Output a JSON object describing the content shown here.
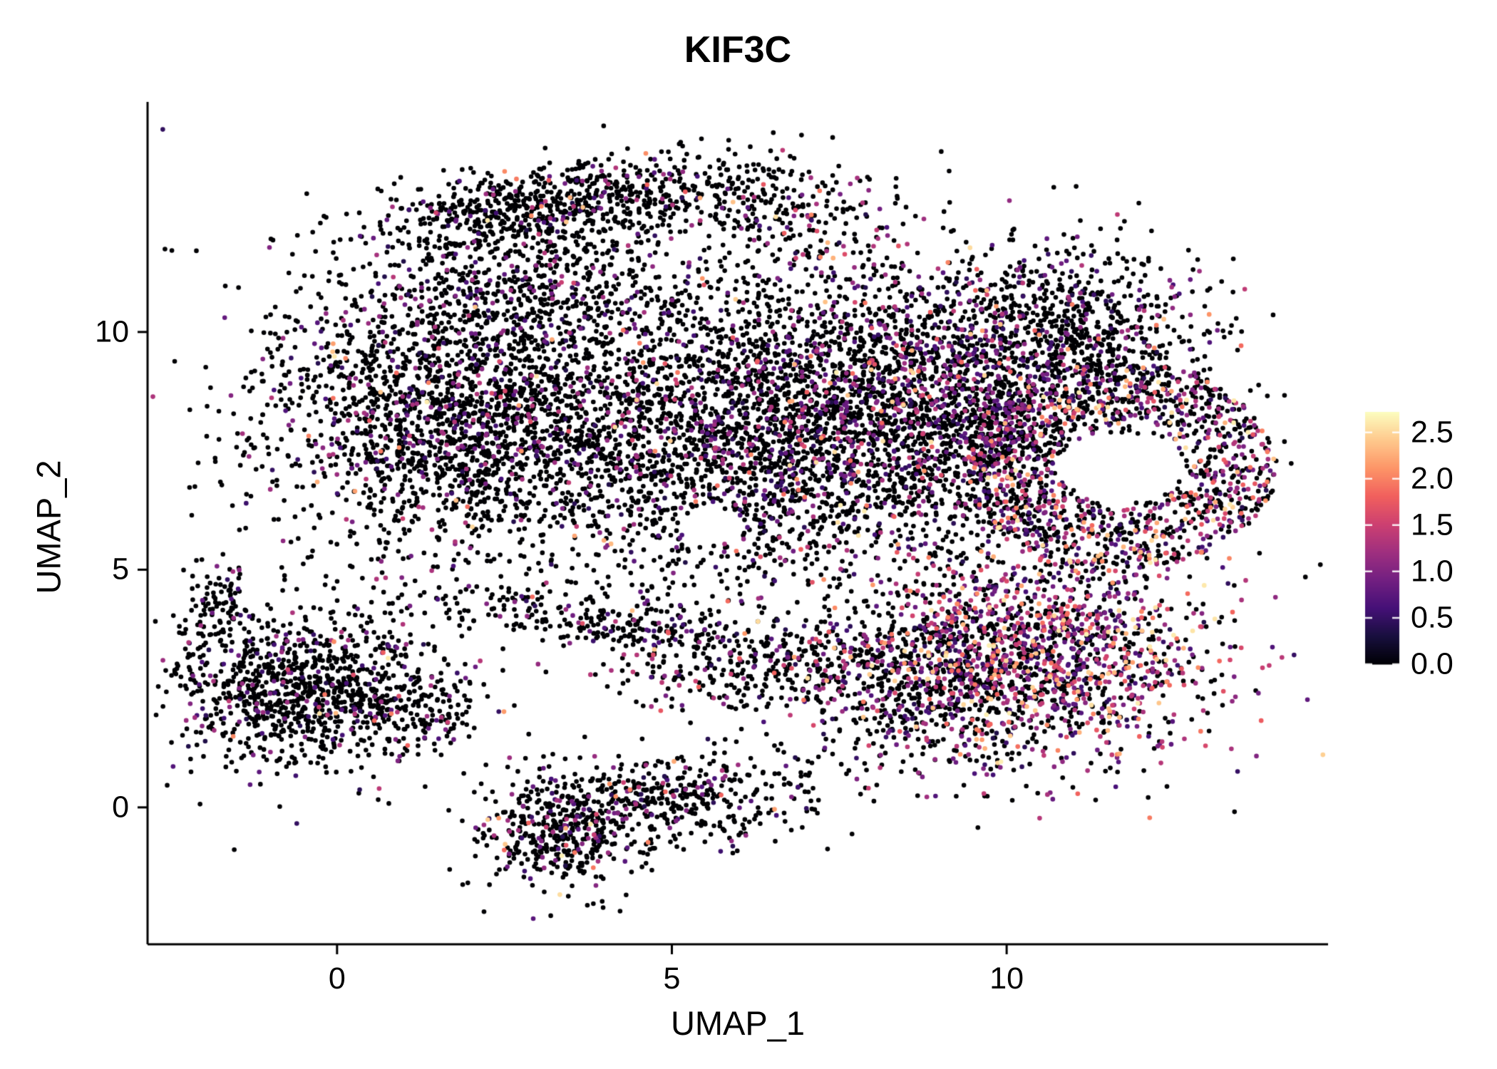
{
  "chart_data": {
    "type": "scatter",
    "title": "KIF3C",
    "xlabel": "UMAP_1",
    "ylabel": "UMAP_2",
    "xlim": [
      -2.83,
      14.8
    ],
    "ylim": [
      -2.88,
      14.84
    ],
    "x_axis": {
      "label": "UMAP_1",
      "ticks": [
        {
          "value": 0,
          "label": "0"
        },
        {
          "value": 5,
          "label": "5"
        },
        {
          "value": 10,
          "label": "10"
        }
      ]
    },
    "y_axis": {
      "label": "UMAP_2",
      "ticks": [
        {
          "value": 0,
          "label": "0"
        },
        {
          "value": 5,
          "label": "5"
        },
        {
          "value": 10,
          "label": "10"
        }
      ]
    },
    "grid": false,
    "legend_position": "right",
    "point_radius": 3.3,
    "seed": 42,
    "colorbar": {
      "vmin": 0.0,
      "vmax": 2.72,
      "colormap": "magma",
      "anchors": [
        "#000004",
        "#180f3e",
        "#451077",
        "#721f81",
        "#9f2f7f",
        "#cd4071",
        "#f1605d",
        "#fd9567",
        "#fec98d",
        "#fcfdbf"
      ],
      "ticks": [
        {
          "value": 2.5,
          "label": "2.5"
        },
        {
          "value": 2.0,
          "label": "2.0"
        },
        {
          "value": 1.5,
          "label": "1.5"
        },
        {
          "value": 1.0,
          "label": "1.0"
        },
        {
          "value": 0.5,
          "label": "0.5"
        },
        {
          "value": 0.0,
          "label": "0.0"
        }
      ]
    },
    "holes": [
      {
        "cx": 11.68,
        "cy": 7.15,
        "rx": 0.85,
        "ry": 0.72
      },
      {
        "cx": 5.6,
        "cy": 5.9,
        "rx": 0.5,
        "ry": 0.38
      }
    ],
    "clusters": [
      {
        "name": "top-ridge",
        "shape": "gauss",
        "cx": 3.5,
        "cy": 12.7,
        "sx": 1.55,
        "sy": 0.45,
        "rot": 10,
        "n": 800,
        "expr": {
          "p0": 0.88,
          "pmid": 0.1,
          "phigh": 0.02
        }
      },
      {
        "name": "top-right-arm",
        "shape": "gauss",
        "cx": 6.7,
        "cy": 12.3,
        "sx": 0.8,
        "sy": 0.55,
        "rot": 0,
        "n": 170,
        "expr": {
          "p0": 0.8,
          "pmid": 0.14,
          "phigh": 0.06
        }
      },
      {
        "name": "upper-left-shoulder",
        "shape": "gauss",
        "cx": 3.1,
        "cy": 11.0,
        "sx": 1.4,
        "sy": 0.75,
        "rot": 0,
        "n": 560,
        "expr": {
          "p0": 0.85,
          "pmid": 0.13,
          "phigh": 0.02
        }
      },
      {
        "name": "left-lobe",
        "shape": "gauss",
        "cx": 1.9,
        "cy": 8.2,
        "sx": 1.55,
        "sy": 1.45,
        "rot": -15,
        "n": 2300,
        "expr": {
          "p0": 0.84,
          "pmid": 0.14,
          "phigh": 0.02
        }
      },
      {
        "name": "center-lobe",
        "shape": "gauss",
        "cx": 5.9,
        "cy": 7.9,
        "sx": 1.5,
        "sy": 1.65,
        "rot": 0,
        "n": 1900,
        "expr": {
          "p0": 0.8,
          "pmid": 0.17,
          "phigh": 0.03
        }
      },
      {
        "name": "right-center-lobe",
        "shape": "gauss",
        "cx": 8.9,
        "cy": 8.4,
        "sx": 1.55,
        "sy": 1.5,
        "rot": 0,
        "n": 2500,
        "expr": {
          "p0": 0.72,
          "pmid": 0.23,
          "phigh": 0.05
        }
      },
      {
        "name": "right-ring",
        "shape": "ring",
        "cx": 11.7,
        "cy": 7.2,
        "r0": 0.95,
        "r1": 2.35,
        "sx": 1.0,
        "sy": 0.92,
        "rot": 0,
        "n": 1150,
        "expr": {
          "p0": 0.53,
          "pmid": 0.29,
          "phigh": 0.18
        }
      },
      {
        "name": "upper-right-lobe",
        "shape": "gauss",
        "cx": 11.1,
        "cy": 10.1,
        "sx": 1.05,
        "sy": 0.85,
        "rot": -20,
        "n": 560,
        "expr": {
          "p0": 0.74,
          "pmid": 0.21,
          "phigh": 0.05
        }
      },
      {
        "name": "bottom-right-cluster",
        "shape": "gauss",
        "cx": 10.5,
        "cy": 3.2,
        "sx": 1.35,
        "sy": 1.15,
        "rot": 0,
        "n": 1600,
        "expr": {
          "p0": 0.42,
          "pmid": 0.34,
          "phigh": 0.24
        }
      },
      {
        "name": "bottom-right-west",
        "shape": "gauss",
        "cx": 8.8,
        "cy": 2.7,
        "sx": 0.95,
        "sy": 0.85,
        "rot": 0,
        "n": 500,
        "expr": {
          "p0": 0.7,
          "pmid": 0.24,
          "phigh": 0.06
        }
      },
      {
        "name": "bridge-strand-left",
        "shape": "gauss",
        "cx": 4.1,
        "cy": 3.9,
        "sx": 1.5,
        "sy": 0.32,
        "rot": -12,
        "n": 320,
        "expr": {
          "p0": 0.86,
          "pmid": 0.12,
          "phigh": 0.02
        }
      },
      {
        "name": "bridge-strand-right",
        "shape": "gauss",
        "cx": 6.7,
        "cy": 2.95,
        "sx": 1.35,
        "sy": 0.38,
        "rot": 8,
        "n": 330,
        "expr": {
          "p0": 0.78,
          "pmid": 0.16,
          "phigh": 0.06
        }
      },
      {
        "name": "left-island",
        "shape": "gauss",
        "cx": -0.5,
        "cy": 2.5,
        "sx": 1.0,
        "sy": 0.8,
        "rot": -10,
        "n": 1050,
        "expr": {
          "p0": 0.86,
          "pmid": 0.12,
          "phigh": 0.02
        }
      },
      {
        "name": "left-island-tail",
        "shape": "gauss",
        "cx": -1.75,
        "cy": 4.3,
        "sx": 0.28,
        "sy": 0.5,
        "rot": 0,
        "n": 85,
        "expr": {
          "p0": 0.9,
          "pmid": 0.1,
          "phigh": 0.0
        }
      },
      {
        "name": "left-island-arm",
        "shape": "gauss",
        "cx": 1.0,
        "cy": 2.1,
        "sx": 0.55,
        "sy": 0.4,
        "rot": 0,
        "n": 130,
        "expr": {
          "p0": 0.85,
          "pmid": 0.13,
          "phigh": 0.02
        }
      },
      {
        "name": "bottom-island-west",
        "shape": "gauss",
        "cx": 3.4,
        "cy": -0.5,
        "sx": 0.65,
        "sy": 0.6,
        "rot": 0,
        "n": 430,
        "expr": {
          "p0": 0.8,
          "pmid": 0.16,
          "phigh": 0.04
        }
      },
      {
        "name": "bottom-island-east",
        "shape": "gauss",
        "cx": 5.2,
        "cy": 0.2,
        "sx": 1.15,
        "sy": 0.5,
        "rot": 8,
        "n": 430,
        "expr": {
          "p0": 0.82,
          "pmid": 0.15,
          "phigh": 0.03
        }
      },
      {
        "name": "sparse-noise",
        "shape": "gauss",
        "cx": 6.2,
        "cy": 7.0,
        "sx": 4.2,
        "sy": 3.4,
        "rot": 0,
        "n": 170,
        "expr": {
          "p0": 0.85,
          "pmid": 0.12,
          "phigh": 0.03
        }
      }
    ]
  }
}
